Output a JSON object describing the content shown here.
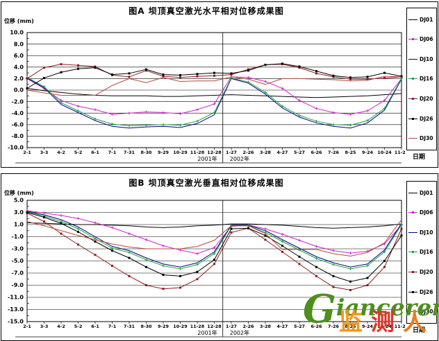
{
  "chart_data": [
    {
      "type": "line",
      "title": "图A 坝顶真空激光水平相对位移成果图",
      "ylabel": "位移 (mm)",
      "xlabel": "日期",
      "ylim": [
        -10,
        10
      ],
      "ytick_step": 2,
      "grid": true,
      "legend_position": "right",
      "year_labels": [
        {
          "text": "2001年",
          "after_index": 11
        },
        {
          "text": "2002年"
        }
      ],
      "categories": [
        "2-1",
        "3-3",
        "4-2",
        "5-2",
        "6-1",
        "7-1",
        "7-31",
        "8-30",
        "9-29",
        "10-29",
        "11-28",
        "12-28",
        "1-27",
        "2-26",
        "3-28",
        "4-27",
        "5-27",
        "6-26",
        "7-26",
        "8-25",
        "9-24",
        "10-24",
        "11-23"
      ],
      "series": [
        {
          "name": "DJ01",
          "color": "#000000",
          "marker": "none",
          "values": [
            0.3,
            -0.1,
            -0.4,
            -0.7,
            -0.9,
            -1.0,
            -1.0,
            -1.0,
            -1.1,
            -1.1,
            -1.0,
            -0.9,
            -0.8,
            -0.9,
            -1.0,
            -1.1,
            -1.2,
            -1.3,
            -1.2,
            -1.1,
            -1.0,
            -0.8,
            -0.6
          ]
        },
        {
          "name": "DJ06",
          "color": "#cc22cc",
          "marker": "plus",
          "values": [
            2.0,
            0.3,
            -1.8,
            -2.8,
            -3.4,
            -4.2,
            -4.0,
            -3.8,
            -3.9,
            -4.1,
            -3.4,
            -2.4,
            2.3,
            2.2,
            1.5,
            0.3,
            -1.8,
            -3.2,
            -3.9,
            -4.2,
            -3.6,
            -1.8,
            2.0
          ]
        },
        {
          "name": "DJ10",
          "color": "#000080",
          "marker": "none",
          "values": [
            2.1,
            0.4,
            -2.5,
            -3.9,
            -5.3,
            -6.3,
            -6.6,
            -6.4,
            -6.3,
            -6.5,
            -5.8,
            -4.3,
            2.0,
            1.2,
            -0.7,
            -3.1,
            -4.7,
            -5.7,
            -6.3,
            -6.6,
            -5.7,
            -3.5,
            1.9
          ]
        },
        {
          "name": "DJ16",
          "color": "#19a347",
          "marker": "plus",
          "values": [
            2.2,
            0.6,
            -2.2,
            -3.6,
            -5.0,
            -5.9,
            -6.2,
            -6.1,
            -6.0,
            -6.1,
            -5.4,
            -3.9,
            2.1,
            1.4,
            -0.4,
            -2.8,
            -4.4,
            -5.4,
            -6.0,
            -6.1,
            -5.3,
            -3.2,
            2.0
          ]
        },
        {
          "name": "DJ20",
          "color": "#8e1a1a",
          "marker": "square",
          "values": [
            2.0,
            3.9,
            4.5,
            4.3,
            4.1,
            2.6,
            2.3,
            3.4,
            2.4,
            2.2,
            2.4,
            2.5,
            2.7,
            3.6,
            4.4,
            4.5,
            3.9,
            2.9,
            2.3,
            1.9,
            1.9,
            2.1,
            2.3
          ]
        },
        {
          "name": "DJ26",
          "color": "#000000",
          "marker": "square",
          "values": [
            0.3,
            2.1,
            3.1,
            3.7,
            3.9,
            2.7,
            2.9,
            3.6,
            2.7,
            2.6,
            2.8,
            3.0,
            2.9,
            3.4,
            4.4,
            4.6,
            4.1,
            3.3,
            2.5,
            2.2,
            2.3,
            3.0,
            2.4
          ]
        },
        {
          "name": "DJ30",
          "color": "#b5493a",
          "marker": "none",
          "values": [
            0.0,
            -0.5,
            -0.9,
            -0.9,
            -0.9,
            0.8,
            2.0,
            1.3,
            2.2,
            1.5,
            1.6,
            1.6,
            2.3,
            1.9,
            1.0,
            2.0,
            2.0,
            1.9,
            1.8,
            1.6,
            1.7,
            2.4,
            2.3
          ]
        }
      ]
    },
    {
      "type": "line",
      "title": "图B 坝顶真空激光垂直相对位移成果图",
      "ylabel": "位移 (mm)",
      "xlabel": "日期",
      "ylim": [
        -15,
        5
      ],
      "ytick_step": 2,
      "grid": true,
      "legend_position": "right",
      "year_labels": [
        {
          "text": "2001年",
          "after_index": 11
        },
        {
          "text": "2002年"
        }
      ],
      "categories": [
        "2-1",
        "3-3",
        "4-2",
        "5-2",
        "6-1",
        "7-1",
        "7-31",
        "8-30",
        "9-29",
        "10-29",
        "11-28",
        "12-28",
        "1-27",
        "2-26",
        "3-28",
        "4-27",
        "5-27",
        "6-26",
        "7-26",
        "8-25",
        "9-24",
        "10-24",
        "11-23"
      ],
      "series": [
        {
          "name": "DJ01",
          "color": "#000000",
          "marker": "none",
          "values": [
            1.3,
            1.2,
            1.1,
            1.0,
            1.0,
            0.9,
            0.8,
            0.6,
            0.5,
            0.6,
            0.8,
            0.9,
            1.1,
            1.1,
            1.0,
            0.9,
            0.7,
            0.5,
            0.4,
            0.5,
            0.6,
            0.8,
            1.1
          ]
        },
        {
          "name": "DJ06",
          "color": "#cc22cc",
          "marker": "plus",
          "values": [
            3.3,
            2.9,
            2.5,
            2.0,
            1.3,
            0.5,
            -0.5,
            -1.5,
            -2.5,
            -3.2,
            -3.8,
            -2.8,
            0.7,
            0.9,
            0.3,
            -0.6,
            -1.6,
            -2.6,
            -3.3,
            -3.7,
            -3.4,
            -2.2,
            0.9
          ]
        },
        {
          "name": "DJ10",
          "color": "#000080",
          "marker": "none",
          "values": [
            3.2,
            2.6,
            1.8,
            0.6,
            -1.0,
            -2.6,
            -3.3,
            -4.5,
            -5.5,
            -6.0,
            -5.3,
            -3.5,
            0.9,
            0.9,
            0.0,
            -1.5,
            -2.9,
            -4.3,
            -5.3,
            -6.0,
            -5.5,
            -3.2,
            1.2
          ]
        },
        {
          "name": "DJ16",
          "color": "#19a347",
          "marker": "plus",
          "values": [
            3.1,
            2.4,
            1.5,
            0.3,
            -1.3,
            -2.9,
            -3.6,
            -4.8,
            -5.8,
            -6.3,
            -5.6,
            -3.8,
            0.8,
            0.8,
            -0.3,
            -1.8,
            -3.2,
            -4.6,
            -5.6,
            -6.3,
            -5.8,
            -3.5,
            1.0
          ]
        },
        {
          "name": "DJ20",
          "color": "#8e1a1a",
          "marker": "square",
          "values": [
            2.9,
            1.5,
            -0.5,
            -2.3,
            -4.0,
            -5.8,
            -7.5,
            -9.0,
            -9.6,
            -9.4,
            -8.0,
            -5.5,
            -0.3,
            0.4,
            -1.5,
            -3.5,
            -5.5,
            -7.5,
            -9.3,
            -9.8,
            -9.0,
            -6.0,
            0.3
          ]
        },
        {
          "name": "DJ26",
          "color": "#000000",
          "marker": "square",
          "values": [
            3.0,
            2.2,
            1.2,
            -0.2,
            -1.8,
            -3.3,
            -4.5,
            -6.0,
            -7.3,
            -7.5,
            -6.8,
            -4.8,
            0.3,
            0.4,
            -0.8,
            -2.5,
            -4.3,
            -6.0,
            -7.5,
            -8.4,
            -7.8,
            -5.0,
            -0.8
          ]
        },
        {
          "name": "DJ30",
          "color": "#b5493a",
          "marker": "none",
          "values": [
            1.5,
            0.8,
            0.0,
            -0.8,
            -1.5,
            -2.2,
            -2.7,
            -3.0,
            -3.0,
            -3.0,
            -2.6,
            -1.6,
            0.8,
            0.8,
            -0.5,
            -3.1,
            -3.1,
            -3.1,
            -3.8,
            -4.2,
            -3.6,
            -2.0,
            1.8
          ]
        }
      ]
    }
  ],
  "watermark": {
    "brand_initial": "G",
    "brand_rest": "ianceren",
    "brand_dot": ".",
    "brand_tld": "cn",
    "stamp": [
      {
        "char": "监",
        "color": "#f2991c"
      },
      {
        "char": "测",
        "color": "#e0342a"
      },
      {
        "char": "人",
        "color": "#ef7b1a"
      }
    ]
  }
}
